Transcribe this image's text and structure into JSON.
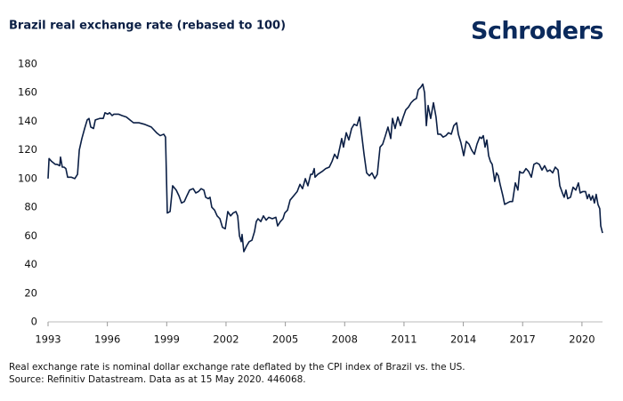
{
  "header": {
    "brand": "Schroders"
  },
  "chart_data": {
    "type": "line",
    "title": "Brazil real exchange rate (rebased to 100)",
    "notes": [
      "Real exchange rate is nominal dollar exchange rate deflated by the CPI index of Brazil vs. the US.",
      "Source: Refinitiv Datastream. Data as at 15 May 2020. 446068."
    ],
    "xlim": [
      1993,
      2021.04
    ],
    "xticks": [
      1993,
      1996,
      1999,
      2002,
      2005,
      2008,
      2011,
      2014,
      2017,
      2020
    ],
    "ylim": [
      0,
      180
    ],
    "yticks": [
      0,
      20,
      40,
      60,
      80,
      100,
      120,
      140,
      160,
      180
    ],
    "grid": false,
    "x": [
      1993,
      1993.05,
      1993.18,
      1993.36,
      1993.45,
      1993.59,
      1993.63,
      1993.72,
      1993.81,
      1993.9,
      1993.99,
      1994.17,
      1994.35,
      1994.49,
      1994.58,
      1994.71,
      1994.85,
      1994.98,
      1995.07,
      1995.16,
      1995.3,
      1995.39,
      1995.61,
      1995.79,
      1995.88,
      1996.02,
      1996.11,
      1996.24,
      1996.33,
      1996.56,
      1996.74,
      1996.96,
      1997.14,
      1997.32,
      1997.59,
      1997.86,
      1998.22,
      1998.49,
      1998.67,
      1998.85,
      1998.94,
      1999.03,
      1999.17,
      1999.3,
      1999.48,
      1999.62,
      1999.75,
      1999.89,
      2000.02,
      2000.16,
      2000.34,
      2000.47,
      2000.61,
      2000.74,
      2000.88,
      2000.97,
      2001.1,
      2001.19,
      2001.28,
      2001.42,
      2001.55,
      2001.69,
      2001.82,
      2001.96,
      2002.09,
      2002.23,
      2002.36,
      2002.5,
      2002.59,
      2002.68,
      2002.77,
      2002.81,
      2002.9,
      2003.04,
      2003.17,
      2003.31,
      2003.44,
      2003.53,
      2003.62,
      2003.76,
      2003.89,
      2004.03,
      2004.16,
      2004.34,
      2004.52,
      2004.61,
      2004.75,
      2004.88,
      2004.97,
      2005.11,
      2005.24,
      2005.42,
      2005.6,
      2005.74,
      2005.87,
      2006.01,
      2006.14,
      2006.28,
      2006.37,
      2006.46,
      2006.5,
      2006.64,
      2006.86,
      2007.04,
      2007.22,
      2007.36,
      2007.49,
      2007.63,
      2007.76,
      2007.85,
      2007.94,
      2008.08,
      2008.21,
      2008.35,
      2008.48,
      2008.62,
      2008.75,
      2008.84,
      2008.98,
      2009.11,
      2009.25,
      2009.38,
      2009.52,
      2009.65,
      2009.79,
      2009.92,
      2010.06,
      2010.19,
      2010.33,
      2010.42,
      2010.55,
      2010.69,
      2010.82,
      2010.96,
      2011.09,
      2011.23,
      2011.36,
      2011.5,
      2011.63,
      2011.72,
      2011.86,
      2011.95,
      2012.04,
      2012.13,
      2012.22,
      2012.35,
      2012.49,
      2012.62,
      2012.71,
      2012.85,
      2012.98,
      2013.12,
      2013.25,
      2013.39,
      2013.52,
      2013.66,
      2013.75,
      2013.88,
      2014.02,
      2014.15,
      2014.29,
      2014.42,
      2014.56,
      2014.69,
      2014.83,
      2014.92,
      2015.01,
      2015.1,
      2015.19,
      2015.28,
      2015.37,
      2015.46,
      2015.59,
      2015.68,
      2015.77,
      2015.86,
      2016,
      2016.09,
      2016.22,
      2016.36,
      2016.49,
      2016.63,
      2016.76,
      2016.85,
      2016.94,
      2017.03,
      2017.17,
      2017.3,
      2017.44,
      2017.57,
      2017.71,
      2017.84,
      2017.98,
      2018.11,
      2018.25,
      2018.38,
      2018.52,
      2018.65,
      2018.79,
      2018.88,
      2019.01,
      2019.1,
      2019.19,
      2019.28,
      2019.42,
      2019.55,
      2019.69,
      2019.82,
      2019.91,
      2020.05,
      2020.18,
      2020.27,
      2020.36,
      2020.45,
      2020.54,
      2020.63,
      2020.72,
      2020.81,
      2020.9,
      2020.95,
      2021.04
    ],
    "series": [
      {
        "color": "#0b1f45",
        "values": [
          100,
          114,
          112,
          110,
          110,
          109,
          115,
          108,
          108,
          107,
          101,
          101,
          100,
          103,
          120,
          128,
          135,
          141,
          142,
          136,
          135,
          141,
          142,
          142,
          146,
          145,
          146,
          144,
          145,
          145,
          144,
          143,
          141,
          139,
          139,
          138,
          136,
          132,
          130,
          131,
          129,
          76,
          77,
          95,
          92,
          88,
          83,
          84,
          88,
          92,
          93,
          90,
          91,
          93,
          92,
          87,
          86,
          87,
          80,
          78,
          74,
          72,
          66,
          65,
          77,
          74,
          76,
          77,
          74,
          60,
          56,
          61,
          49,
          53,
          56,
          57,
          63,
          70,
          72,
          70,
          74,
          71,
          73,
          72,
          73,
          67,
          70,
          72,
          76,
          78,
          85,
          88,
          91,
          96,
          93,
          100,
          95,
          103,
          103,
          107,
          101,
          103,
          105,
          107,
          108,
          112,
          117,
          114,
          122,
          128,
          122,
          132,
          127,
          135,
          138,
          137,
          143,
          133,
          117,
          104,
          102,
          104,
          100,
          103,
          122,
          124,
          130,
          136,
          128,
          142,
          135,
          143,
          137,
          143,
          148,
          150,
          153,
          155,
          156,
          162,
          164,
          166,
          160,
          137,
          151,
          142,
          153,
          143,
          131,
          131,
          129,
          130,
          132,
          131,
          137,
          139,
          131,
          125,
          116,
          126,
          124,
          120,
          117,
          124,
          129,
          128,
          130,
          122,
          127,
          116,
          112,
          110,
          98,
          104,
          102,
          96,
          88,
          82,
          83,
          84,
          84,
          97,
          92,
          105,
          104,
          104,
          107,
          105,
          101,
          110,
          111,
          110,
          106,
          109,
          105,
          106,
          104,
          108,
          106,
          95,
          90,
          87,
          92,
          86,
          87,
          94,
          92,
          97,
          90,
          91,
          91,
          86,
          89,
          85,
          88,
          83,
          89,
          82,
          79,
          67,
          62
        ]
      }
    ]
  }
}
